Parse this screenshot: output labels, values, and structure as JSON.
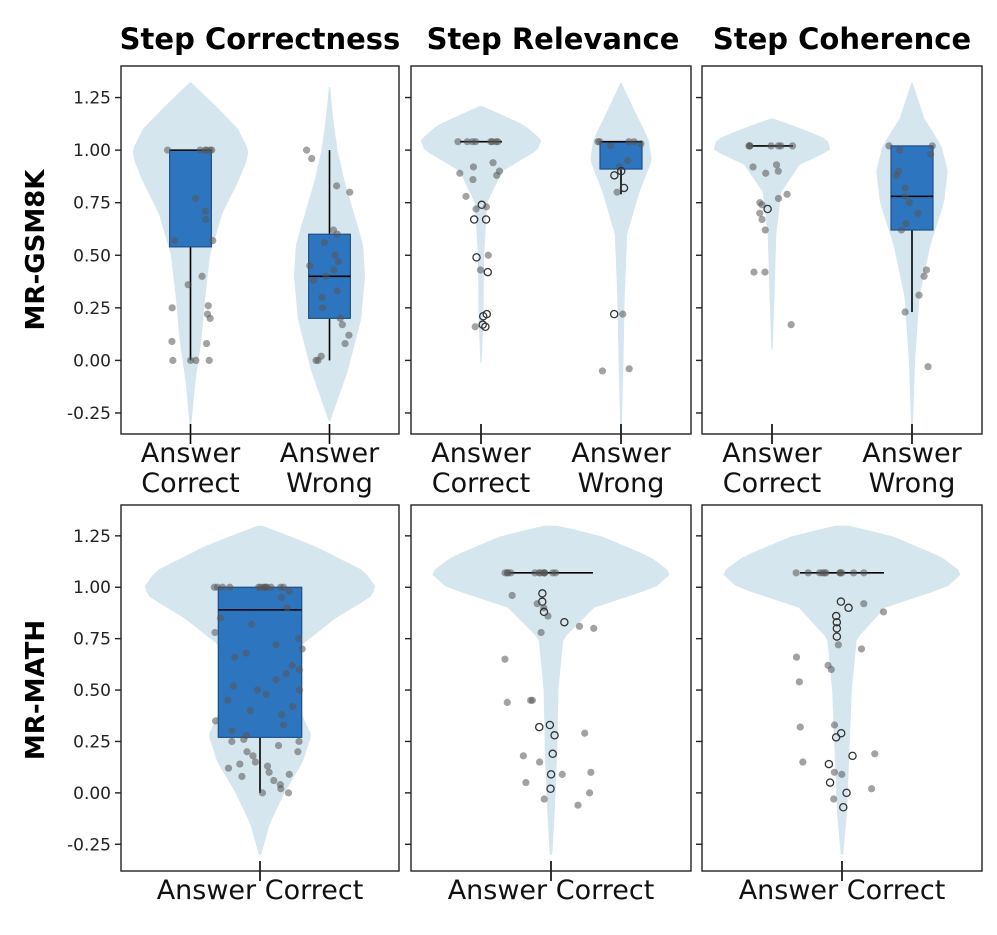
{
  "figure": {
    "column_titles": [
      "Step Correctness",
      "Step Relevance",
      "Step Coherence"
    ],
    "row_labels": [
      "MR-GSM8K",
      "MR-MATH"
    ]
  },
  "style": {
    "violin_fill": "#d6e6ef",
    "box_fill": "#2e75c0",
    "box_edge": "#1e4f86",
    "point_color": "#555555"
  },
  "chart_data": [
    {
      "type": "violin",
      "row": "MR-GSM8K",
      "title": "Step Correctness",
      "ylim": [
        -0.35,
        1.4
      ],
      "yticks": [
        "-0.25",
        "0.00",
        "0.25",
        "0.50",
        "0.75",
        "1.00",
        "1.25"
      ],
      "ytick_values": [
        -0.25,
        0,
        0.25,
        0.5,
        0.75,
        1.0,
        1.25
      ],
      "categories": [
        "Answer Correct",
        "Answer Wrong"
      ],
      "category_lines": [
        [
          "Answer",
          "Correct"
        ],
        [
          "Answer",
          "Wrong"
        ]
      ],
      "groups": [
        {
          "box": {
            "q1": 0.54,
            "median": 1.0,
            "q3": 1.0,
            "whisker_low": 0.0,
            "whisker_high": 1.0
          },
          "violin": {
            "min": -0.32,
            "max": 1.32,
            "profile": [
              [
                -0.32,
                0.01
              ],
              [
                -0.1,
                0.08
              ],
              [
                0.1,
                0.18
              ],
              [
                0.3,
                0.24
              ],
              [
                0.5,
                0.32
              ],
              [
                0.7,
                0.52
              ],
              [
                0.85,
                0.78
              ],
              [
                0.95,
                0.92
              ],
              [
                1.0,
                0.95
              ],
              [
                1.1,
                0.78
              ],
              [
                1.2,
                0.45
              ],
              [
                1.32,
                0.02
              ]
            ]
          },
          "points": [
            1.0,
            1.0,
            1.0,
            1.0,
            1.0,
            1.0,
            0.77,
            0.71,
            0.67,
            0.57,
            0.57,
            0.4,
            0.36,
            0.26,
            0.25,
            0.22,
            0.2,
            0.09,
            0.08,
            0.0,
            0.0,
            0.0,
            0.0
          ]
        },
        {
          "box": {
            "q1": 0.2,
            "median": 0.4,
            "q3": 0.6,
            "whisker_low": 0.0,
            "whisker_high": 1.0
          },
          "violin": {
            "min": -0.29,
            "max": 1.3,
            "profile": [
              [
                -0.29,
                0.01
              ],
              [
                -0.05,
                0.3
              ],
              [
                0.2,
                0.52
              ],
              [
                0.4,
                0.58
              ],
              [
                0.55,
                0.55
              ],
              [
                0.7,
                0.4
              ],
              [
                0.85,
                0.25
              ],
              [
                1.0,
                0.13
              ],
              [
                1.15,
                0.06
              ],
              [
                1.3,
                0.01
              ]
            ]
          },
          "points": [
            1.0,
            0.96,
            0.83,
            0.8,
            0.62,
            0.6,
            0.56,
            0.5,
            0.47,
            0.45,
            0.43,
            0.4,
            0.38,
            0.33,
            0.3,
            0.25,
            0.2,
            0.17,
            0.12,
            0.08,
            0.02,
            0.0,
            0.0
          ]
        }
      ]
    },
    {
      "type": "violin",
      "row": "MR-GSM8K",
      "title": "Step Relevance",
      "ylim": [
        -0.35,
        1.4
      ],
      "yticks": [],
      "ytick_values": [
        -0.25,
        0,
        0.25,
        0.5,
        0.75,
        1.0,
        1.25
      ],
      "categories": [
        "Answer Correct",
        "Answer Wrong"
      ],
      "category_lines": [
        [
          "Answer",
          "Correct"
        ],
        [
          "Answer",
          "Wrong"
        ]
      ],
      "groups": [
        {
          "box": {
            "q1": 1.04,
            "median": 1.04,
            "q3": 1.04,
            "whisker_low": 1.04,
            "whisker_high": 1.04
          },
          "violin": {
            "min": -0.01,
            "max": 1.21,
            "profile": [
              [
                -0.01,
                0.01
              ],
              [
                0.2,
                0.04
              ],
              [
                0.5,
                0.05
              ],
              [
                0.75,
                0.1
              ],
              [
                0.9,
                0.35
              ],
              [
                1.0,
                0.92
              ],
              [
                1.05,
                0.98
              ],
              [
                1.12,
                0.7
              ],
              [
                1.21,
                0.02
              ]
            ]
          },
          "points": [
            1.04,
            1.04,
            1.04,
            1.04,
            1.04,
            1.04,
            1.04,
            1.04,
            0.94,
            0.92,
            0.9,
            0.89,
            0.88,
            0.86,
            0.78,
            0.74,
            0.73,
            0.72,
            0.67,
            0.67,
            0.5,
            0.49,
            0.43,
            0.42,
            0.22,
            0.21,
            0.17,
            0.16,
            0.16
          ]
        },
        {
          "box": {
            "q1": 0.91,
            "median": 1.04,
            "q3": 1.04,
            "whisker_low": 0.79,
            "whisker_high": 1.04
          },
          "violin": {
            "min": -0.35,
            "max": 1.32,
            "profile": [
              [
                -0.35,
                0.01
              ],
              [
                0.0,
                0.04
              ],
              [
                0.3,
                0.06
              ],
              [
                0.6,
                0.1
              ],
              [
                0.8,
                0.3
              ],
              [
                0.95,
                0.5
              ],
              [
                1.05,
                0.45
              ],
              [
                1.2,
                0.2
              ],
              [
                1.32,
                0.01
              ]
            ]
          },
          "points": [
            1.04,
            1.04,
            1.04,
            1.04,
            1.03,
            1.02,
            0.95,
            0.92,
            0.9,
            0.88,
            0.82,
            0.8,
            0.22,
            0.22,
            -0.05,
            -0.04
          ]
        }
      ]
    },
    {
      "type": "violin",
      "row": "MR-GSM8K",
      "title": "Step Coherence",
      "ylim": [
        -0.35,
        1.4
      ],
      "yticks": [],
      "ytick_values": [
        -0.25,
        0,
        0.25,
        0.5,
        0.75,
        1.0,
        1.25
      ],
      "categories": [
        "Answer Correct",
        "Answer Wrong"
      ],
      "category_lines": [
        [
          "Answer",
          "Correct"
        ],
        [
          "Answer",
          "Wrong"
        ]
      ],
      "groups": [
        {
          "box": {
            "q1": 1.02,
            "median": 1.02,
            "q3": 1.02,
            "whisker_low": 1.02,
            "whisker_high": 1.02
          },
          "violin": {
            "min": 0.05,
            "max": 1.15,
            "profile": [
              [
                0.05,
                0.01
              ],
              [
                0.3,
                0.04
              ],
              [
                0.6,
                0.07
              ],
              [
                0.8,
                0.15
              ],
              [
                0.93,
                0.45
              ],
              [
                1.0,
                0.95
              ],
              [
                1.05,
                0.9
              ],
              [
                1.1,
                0.5
              ],
              [
                1.15,
                0.02
              ]
            ]
          },
          "points": [
            1.02,
            1.02,
            1.02,
            1.02,
            1.02,
            1.02,
            1.02,
            0.93,
            0.92,
            0.9,
            0.89,
            0.79,
            0.77,
            0.75,
            0.74,
            0.72,
            0.7,
            0.67,
            0.62,
            0.42,
            0.42,
            0.17
          ]
        },
        {
          "box": {
            "q1": 0.62,
            "median": 0.78,
            "q3": 1.02,
            "whisker_low": 0.23,
            "whisker_high": 1.02
          },
          "violin": {
            "min": -0.35,
            "max": 1.32,
            "profile": [
              [
                -0.35,
                0.01
              ],
              [
                0.0,
                0.05
              ],
              [
                0.3,
                0.12
              ],
              [
                0.55,
                0.3
              ],
              [
                0.75,
                0.52
              ],
              [
                0.9,
                0.58
              ],
              [
                1.02,
                0.48
              ],
              [
                1.15,
                0.2
              ],
              [
                1.32,
                0.01
              ]
            ]
          },
          "points": [
            1.02,
            1.02,
            1.0,
            0.98,
            0.9,
            0.88,
            0.82,
            0.78,
            0.75,
            0.7,
            0.65,
            0.62,
            0.43,
            0.4,
            0.31,
            0.23,
            -0.03
          ]
        }
      ]
    },
    {
      "type": "violin",
      "row": "MR-MATH",
      "title": "Step Correctness",
      "ylim": [
        -0.38,
        1.4
      ],
      "yticks": [
        "-0.25",
        "0.00",
        "0.25",
        "0.50",
        "0.75",
        "1.00",
        "1.25"
      ],
      "ytick_values": [
        -0.25,
        0,
        0.25,
        0.5,
        0.75,
        1.0,
        1.25
      ],
      "categories": [
        "Answer Correct"
      ],
      "category_lines": [
        [
          "Answer Correct"
        ]
      ],
      "groups": [
        {
          "box": {
            "q1": 0.27,
            "median": 0.89,
            "q3": 1.0,
            "whisker_low": 0.0,
            "whisker_high": 1.0
          },
          "violin": {
            "min": -0.3,
            "max": 1.3,
            "profile": [
              [
                -0.3,
                0.01
              ],
              [
                -0.15,
                0.08
              ],
              [
                0.0,
                0.2
              ],
              [
                0.15,
                0.35
              ],
              [
                0.28,
                0.42
              ],
              [
                0.4,
                0.33
              ],
              [
                0.55,
                0.25
              ],
              [
                0.7,
                0.3
              ],
              [
                0.85,
                0.62
              ],
              [
                0.95,
                0.9
              ],
              [
                1.0,
                0.95
              ],
              [
                1.08,
                0.85
              ],
              [
                1.2,
                0.45
              ],
              [
                1.3,
                0.02
              ]
            ]
          },
          "points": [
            1.0,
            1.0,
            1.0,
            1.0,
            1.0,
            1.0,
            1.0,
            1.0,
            1.0,
            1.0,
            1.0,
            1.0,
            1.0,
            0.98,
            0.95,
            0.9,
            0.85,
            0.82,
            0.78,
            0.75,
            0.72,
            0.7,
            0.68,
            0.66,
            0.62,
            0.6,
            0.58,
            0.55,
            0.52,
            0.5,
            0.5,
            0.48,
            0.45,
            0.42,
            0.4,
            0.38,
            0.35,
            0.33,
            0.3,
            0.28,
            0.26,
            0.25,
            0.25,
            0.23,
            0.2,
            0.2,
            0.18,
            0.15,
            0.14,
            0.13,
            0.12,
            0.1,
            0.09,
            0.08,
            0.06,
            0.04,
            0.02,
            0.0,
            0.0
          ]
        }
      ]
    },
    {
      "type": "violin",
      "row": "MR-MATH",
      "title": "Step Relevance",
      "ylim": [
        -0.38,
        1.4
      ],
      "yticks": [],
      "ytick_values": [
        -0.25,
        0,
        0.25,
        0.5,
        0.75,
        1.0,
        1.25
      ],
      "categories": [
        "Answer Correct"
      ],
      "category_lines": [
        [
          "Answer Correct"
        ]
      ],
      "groups": [
        {
          "box": {
            "q1": 1.07,
            "median": 1.07,
            "q3": 1.07,
            "whisker_low": 1.07,
            "whisker_high": 1.07
          },
          "violin": {
            "min": -0.3,
            "max": 1.3,
            "profile": [
              [
                -0.3,
                0.01
              ],
              [
                -0.1,
                0.03
              ],
              [
                0.2,
                0.05
              ],
              [
                0.5,
                0.06
              ],
              [
                0.75,
                0.1
              ],
              [
                0.9,
                0.35
              ],
              [
                1.0,
                0.85
              ],
              [
                1.07,
                0.98
              ],
              [
                1.15,
                0.8
              ],
              [
                1.25,
                0.4
              ],
              [
                1.3,
                0.05
              ]
            ]
          },
          "points": [
            1.07,
            1.07,
            1.07,
            1.07,
            1.07,
            1.07,
            1.07,
            1.07,
            1.07,
            1.07,
            1.07,
            1.07,
            0.97,
            0.96,
            0.93,
            0.92,
            0.9,
            0.88,
            0.86,
            0.83,
            0.81,
            0.8,
            0.78,
            0.65,
            0.45,
            0.45,
            0.44,
            0.33,
            0.32,
            0.29,
            0.28,
            0.19,
            0.18,
            0.15,
            0.1,
            0.09,
            0.09,
            0.05,
            0.02,
            0.0,
            -0.03,
            -0.06
          ]
        }
      ]
    },
    {
      "type": "violin",
      "row": "MR-MATH",
      "title": "Step Coherence",
      "ylim": [
        -0.38,
        1.4
      ],
      "yticks": [],
      "ytick_values": [
        -0.25,
        0,
        0.25,
        0.5,
        0.75,
        1.0,
        1.25
      ],
      "categories": [
        "Answer Correct"
      ],
      "category_lines": [
        [
          "Answer Correct"
        ]
      ],
      "groups": [
        {
          "box": {
            "q1": 1.07,
            "median": 1.07,
            "q3": 1.07,
            "whisker_low": 1.07,
            "whisker_high": 1.07
          },
          "violin": {
            "min": -0.3,
            "max": 1.3,
            "profile": [
              [
                -0.3,
                0.01
              ],
              [
                -0.1,
                0.04
              ],
              [
                0.2,
                0.06
              ],
              [
                0.5,
                0.08
              ],
              [
                0.75,
                0.12
              ],
              [
                0.9,
                0.35
              ],
              [
                1.0,
                0.85
              ],
              [
                1.07,
                0.98
              ],
              [
                1.15,
                0.8
              ],
              [
                1.25,
                0.4
              ],
              [
                1.3,
                0.05
              ]
            ]
          },
          "points": [
            1.07,
            1.07,
            1.07,
            1.07,
            1.07,
            1.07,
            1.07,
            1.07,
            1.07,
            1.07,
            1.07,
            0.93,
            0.92,
            0.9,
            0.88,
            0.86,
            0.83,
            0.8,
            0.76,
            0.72,
            0.7,
            0.66,
            0.62,
            0.6,
            0.54,
            0.33,
            0.32,
            0.29,
            0.27,
            0.19,
            0.18,
            0.15,
            0.14,
            0.1,
            0.09,
            0.05,
            0.02,
            0.0,
            -0.03,
            -0.07
          ]
        }
      ]
    }
  ]
}
